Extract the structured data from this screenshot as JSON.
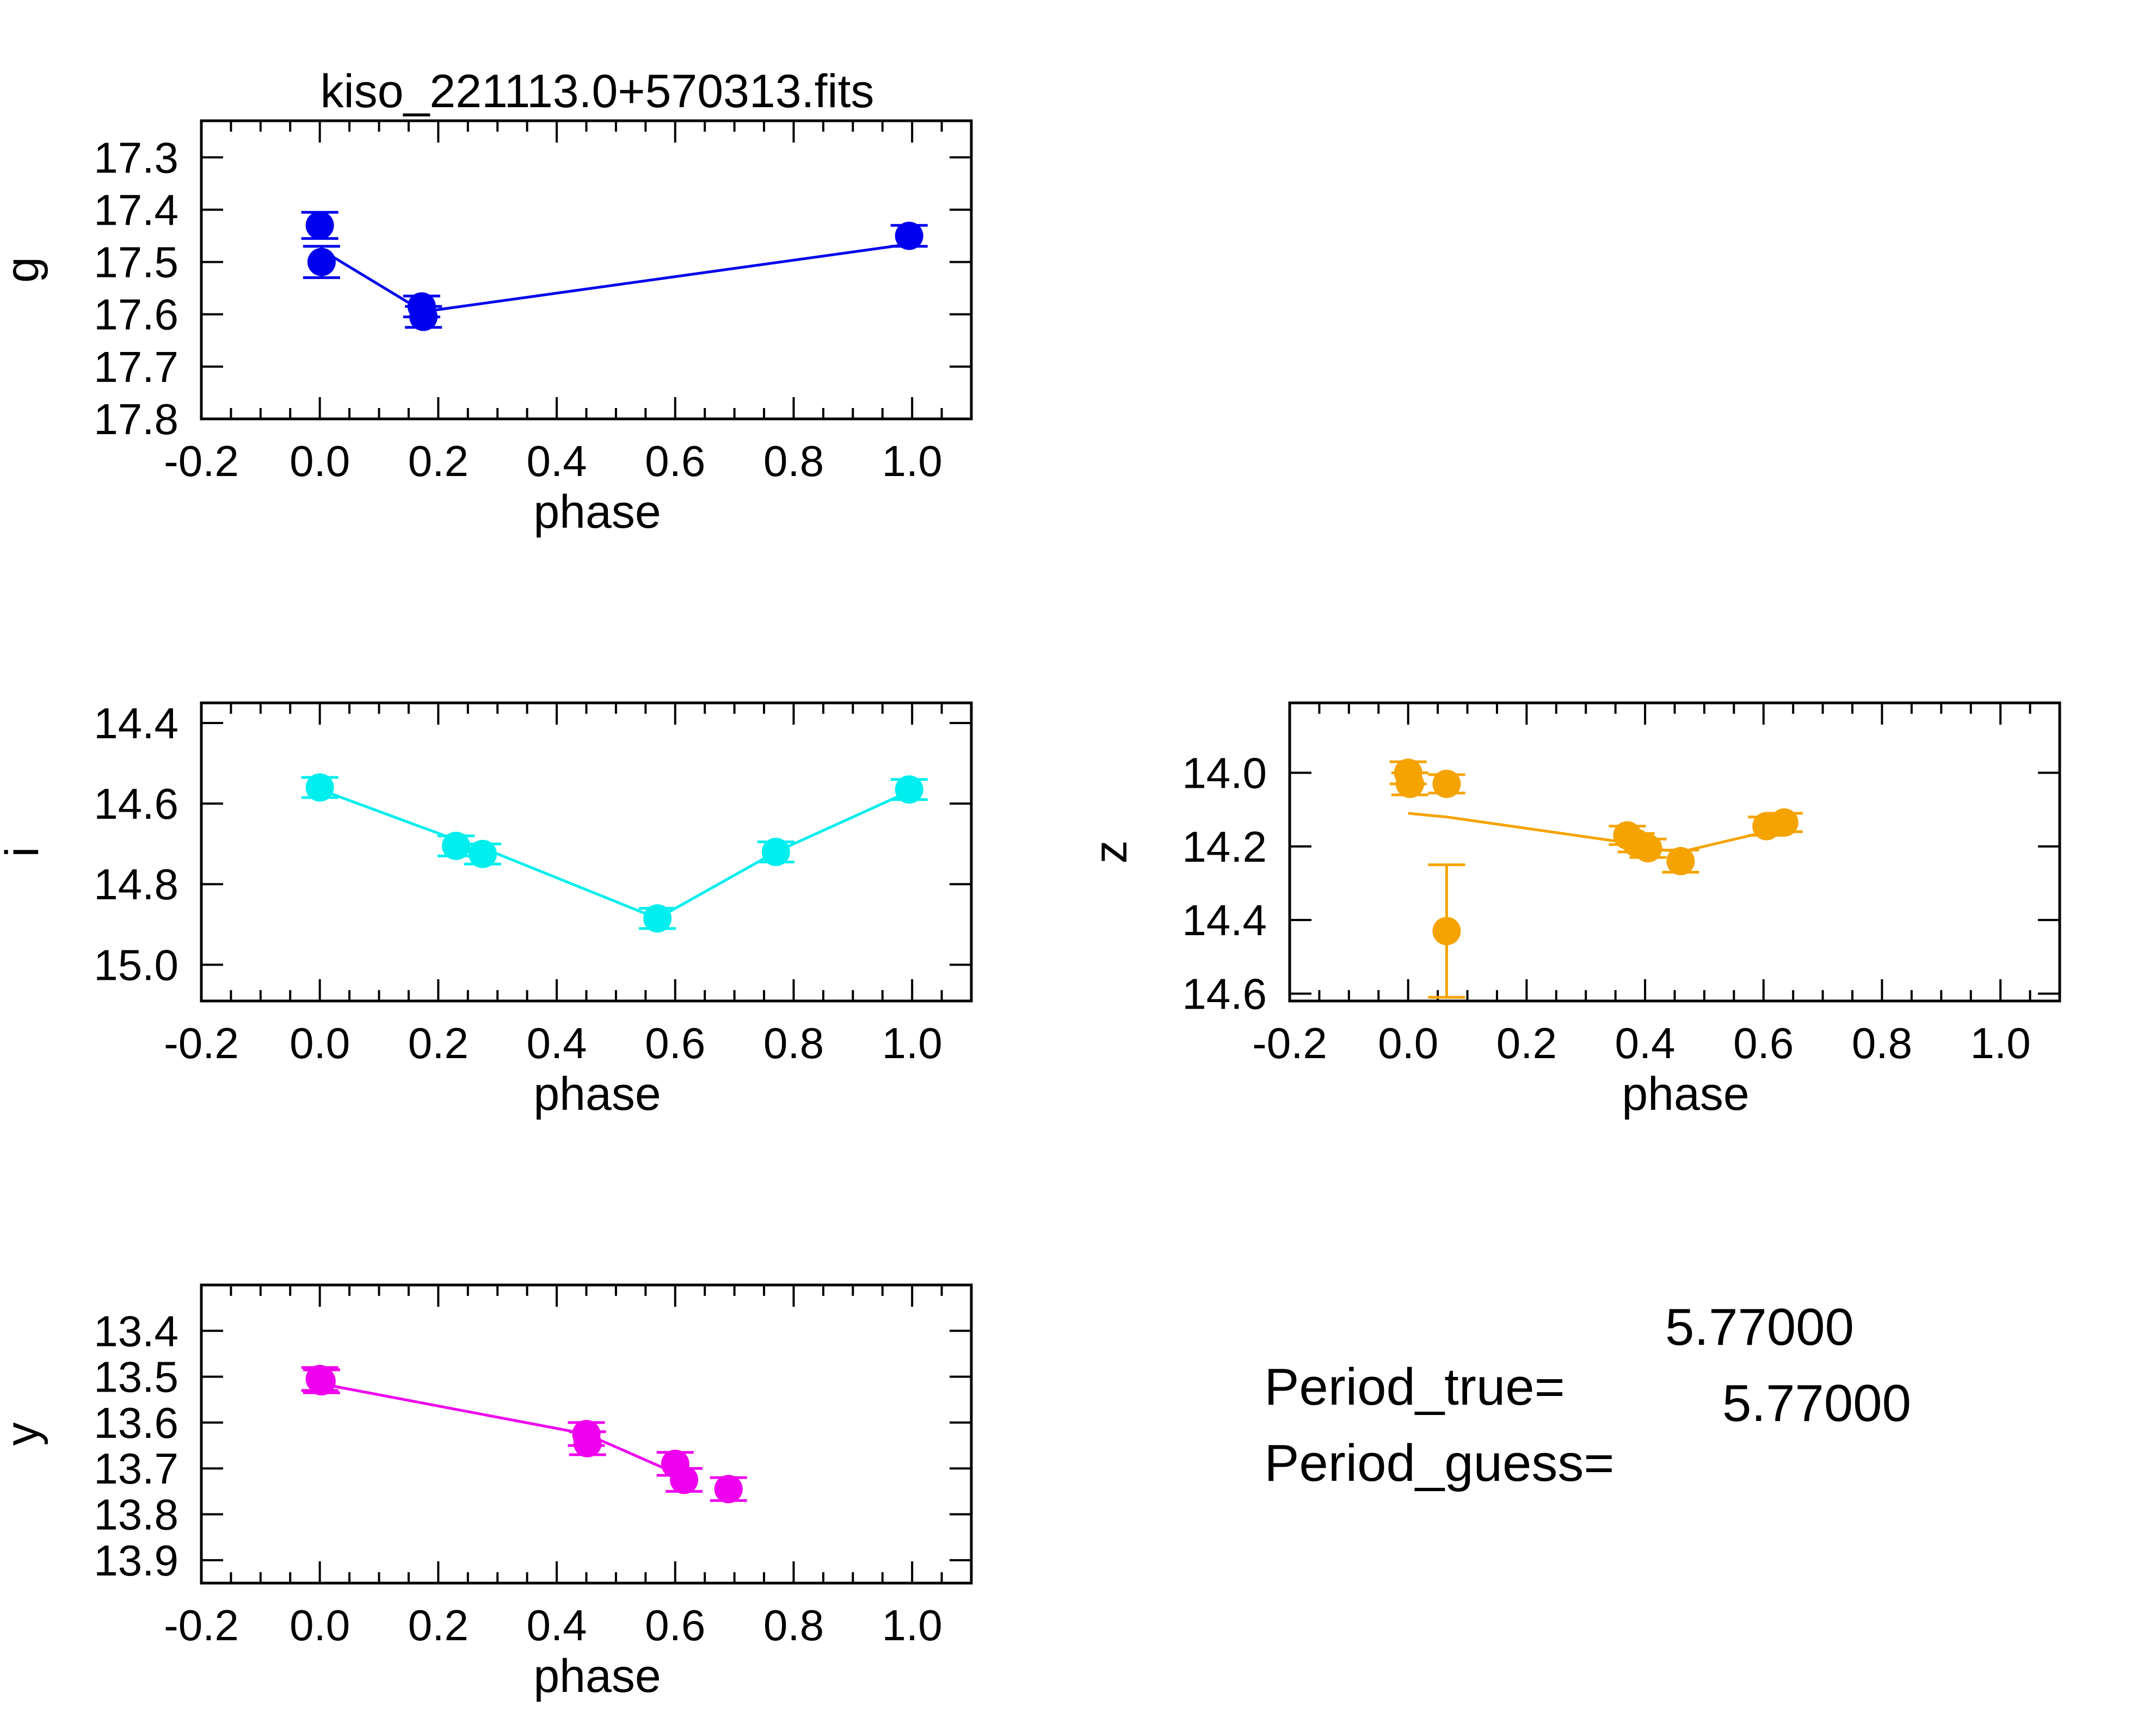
{
  "title": "kiso_221113.0+570313.fits",
  "chart_data": [
    {
      "type": "scatter",
      "panel": "g",
      "title": "kiso_221113.0+570313.fits",
      "xlabel": "phase",
      "ylabel": "g",
      "color": "#0000ee",
      "xlim": [
        -0.2,
        1.1
      ],
      "ylim": [
        17.8,
        17.23
      ],
      "y_inverted": true,
      "xticks": [
        -0.2,
        0.0,
        0.2,
        0.4,
        0.6,
        0.8,
        1.0
      ],
      "xtick_labels": [
        "-0.2",
        "0.0",
        "0.2",
        "0.4",
        "0.6",
        "0.8",
        "1.0"
      ],
      "yticks": [
        17.3,
        17.4,
        17.5,
        17.6,
        17.7,
        17.8
      ],
      "ytick_labels": [
        "17.3",
        "17.4",
        "17.5",
        "17.6",
        "17.7",
        "17.8"
      ],
      "points": [
        {
          "x": 0.0,
          "y": 17.43,
          "err": 0.025
        },
        {
          "x": 0.003,
          "y": 17.5,
          "err": 0.03
        },
        {
          "x": 0.172,
          "y": 17.585,
          "err": 0.02
        },
        {
          "x": 0.175,
          "y": 17.605,
          "err": 0.02
        },
        {
          "x": 0.995,
          "y": 17.45,
          "err": 0.02
        }
      ],
      "model": {
        "x": [
          0.0,
          0.175,
          1.0
        ],
        "y": [
          17.475,
          17.595,
          17.465
        ]
      }
    },
    {
      "type": "scatter",
      "panel": "i",
      "xlabel": "phase",
      "ylabel": "i",
      "color": "#00eeee",
      "xlim": [
        -0.2,
        1.1
      ],
      "ylim": [
        15.09,
        14.35
      ],
      "y_inverted": true,
      "xticks": [
        -0.2,
        0.0,
        0.2,
        0.4,
        0.6,
        0.8,
        1.0
      ],
      "xtick_labels": [
        "-0.2",
        "0.0",
        "0.2",
        "0.4",
        "0.6",
        "0.8",
        "1.0"
      ],
      "yticks": [
        14.4,
        14.6,
        14.8,
        15.0
      ],
      "ytick_labels": [
        "14.4",
        "14.6",
        "14.8",
        "15.0"
      ],
      "points": [
        {
          "x": 0.0,
          "y": 14.56,
          "err": 0.025
        },
        {
          "x": 0.23,
          "y": 14.705,
          "err": 0.025
        },
        {
          "x": 0.275,
          "y": 14.725,
          "err": 0.025
        },
        {
          "x": 0.57,
          "y": 14.885,
          "err": 0.025
        },
        {
          "x": 0.77,
          "y": 14.72,
          "err": 0.025
        },
        {
          "x": 0.995,
          "y": 14.565,
          "err": 0.025
        }
      ],
      "model": {
        "x": [
          0.0,
          0.23,
          0.275,
          0.57,
          0.77,
          0.995
        ],
        "y": [
          14.565,
          14.69,
          14.71,
          14.885,
          14.72,
          14.57
        ]
      }
    },
    {
      "type": "scatter",
      "panel": "z",
      "xlabel": "phase",
      "ylabel": "z",
      "color": "#f5a300",
      "xlim": [
        -0.2,
        1.1
      ],
      "ylim": [
        14.62,
        13.81
      ],
      "y_inverted": true,
      "xticks": [
        -0.2,
        0.0,
        0.2,
        0.4,
        0.6,
        0.8,
        1.0
      ],
      "xtick_labels": [
        "-0.2",
        "0.0",
        "0.2",
        "0.4",
        "0.6",
        "0.8",
        "1.0"
      ],
      "yticks": [
        14.0,
        14.2,
        14.4,
        14.6
      ],
      "ytick_labels": [
        "14.0",
        "14.2",
        "14.4",
        "14.6"
      ],
      "points": [
        {
          "x": 0.0,
          "y": 14.0,
          "err": 0.03
        },
        {
          "x": 0.003,
          "y": 14.03,
          "err": 0.03
        },
        {
          "x": 0.065,
          "y": 14.03,
          "err": 0.025
        },
        {
          "x": 0.065,
          "y": 14.43,
          "err": 0.18
        },
        {
          "x": 0.37,
          "y": 14.17,
          "err": 0.025
        },
        {
          "x": 0.385,
          "y": 14.19,
          "err": 0.025
        },
        {
          "x": 0.405,
          "y": 14.205,
          "err": 0.025
        },
        {
          "x": 0.46,
          "y": 14.24,
          "err": 0.03
        },
        {
          "x": 0.605,
          "y": 14.145,
          "err": 0.025
        },
        {
          "x": 0.635,
          "y": 14.135,
          "err": 0.025
        }
      ],
      "model": {
        "x": [
          0.0,
          0.065,
          0.37,
          0.385,
          0.405,
          0.46,
          0.605,
          0.635
        ],
        "y": [
          14.11,
          14.12,
          14.19,
          14.2,
          14.205,
          14.215,
          14.16,
          14.15
        ]
      }
    },
    {
      "type": "scatter",
      "panel": "y",
      "xlabel": "phase",
      "ylabel": "y",
      "color": "#ee00ee",
      "xlim": [
        -0.2,
        1.1
      ],
      "ylim": [
        13.95,
        13.3
      ],
      "y_inverted": true,
      "xticks": [
        -0.2,
        0.0,
        0.2,
        0.4,
        0.6,
        0.8,
        1.0
      ],
      "xtick_labels": [
        "-0.2",
        "0.0",
        "0.2",
        "0.4",
        "0.6",
        "0.8",
        "1.0"
      ],
      "yticks": [
        13.4,
        13.5,
        13.6,
        13.7,
        13.8,
        13.9
      ],
      "ytick_labels": [
        "13.4",
        "13.5",
        "13.6",
        "13.7",
        "13.8",
        "13.9"
      ],
      "points": [
        {
          "x": 0.0,
          "y": 13.505,
          "err": 0.025
        },
        {
          "x": 0.003,
          "y": 13.51,
          "err": 0.025
        },
        {
          "x": 0.45,
          "y": 13.625,
          "err": 0.025
        },
        {
          "x": 0.452,
          "y": 13.645,
          "err": 0.025
        },
        {
          "x": 0.6,
          "y": 13.69,
          "err": 0.025
        },
        {
          "x": 0.615,
          "y": 13.725,
          "err": 0.025
        },
        {
          "x": 0.69,
          "y": 13.745,
          "err": 0.025
        }
      ],
      "model": {
        "x": [
          0.0,
          0.45,
          0.6
        ],
        "y": [
          13.515,
          13.625,
          13.71
        ]
      }
    }
  ],
  "period": {
    "true_label": "Period_true=",
    "true_value": "5.77000",
    "guess_label": "Period_guess=",
    "guess_value": "5.77000"
  }
}
